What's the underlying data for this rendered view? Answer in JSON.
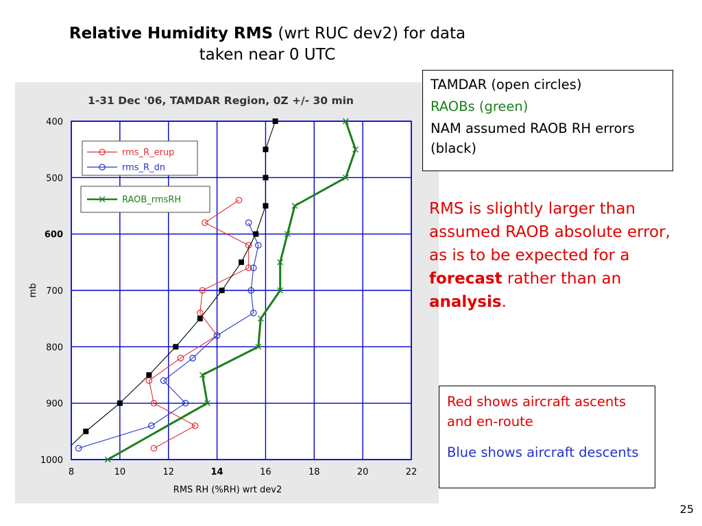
{
  "slide": {
    "title_bold": "Relative Humidity RMS",
    "title_rest": " (wrt RUC dev2) for data",
    "title_line2": "taken near 0 UTC",
    "legend_box": {
      "line1": "TAMDAR (open circles)",
      "line2": "RAOBs (green)",
      "line3": "NAM assumed RAOB RH errors (black)"
    },
    "note": {
      "part1": "RMS is slightly larger than assumed RAOB absolute error, as is to be expected for a ",
      "bold1": "forecast",
      "part2": " rather than an ",
      "bold2": "analysis",
      "part3": "."
    },
    "color_box": {
      "red_text": "Red shows aircraft ascents and en-route",
      "blue_text": "Blue shows aircraft descents"
    },
    "page_number": "25"
  },
  "chart_data": {
    "type": "line",
    "title": "1-31 Dec '06, TAMDAR Region, 0Z +/- 30 min",
    "xlabel": "RMS RH (%RH) wrt dev2",
    "ylabel": "mb",
    "xlim": [
      8,
      22
    ],
    "ylim": [
      1000,
      400
    ],
    "x_ticks": [
      8,
      10,
      12,
      14,
      16,
      18,
      20,
      22
    ],
    "x_ticks_bold": [
      14
    ],
    "y_ticks": [
      400,
      500,
      600,
      700,
      800,
      900,
      1000
    ],
    "y_ticks_bold": [
      600
    ],
    "grid": true,
    "grid_color": "#0000cc",
    "legend_placement": "top-left",
    "series": [
      {
        "name": "rms_R_erup",
        "color": "#e03030",
        "marker": "open-circle",
        "x": [
          14.9,
          13.5,
          15.3,
          15.3,
          13.4,
          13.3,
          14.0,
          12.5,
          11.2,
          11.4,
          13.1,
          11.4
        ],
        "y": [
          540,
          580,
          620,
          660,
          700,
          740,
          780,
          820,
          860,
          900,
          940,
          980
        ]
      },
      {
        "name": "rms_R_dn",
        "color": "#2233cc",
        "marker": "open-circle",
        "x": [
          15.3,
          15.7,
          15.5,
          15.4,
          15.5,
          14.0,
          13.0,
          11.8,
          12.7,
          11.3,
          8.3
        ],
        "y": [
          580,
          620,
          660,
          700,
          740,
          780,
          820,
          860,
          900,
          940,
          980
        ]
      },
      {
        "name": "RAOB_rmsRH",
        "color": "#1a7f1a",
        "marker": "x",
        "x": [
          19.3,
          19.7,
          19.3,
          17.2,
          16.9,
          16.6,
          16.6,
          15.8,
          15.7,
          13.4,
          13.6,
          9.5
        ],
        "y": [
          400,
          450,
          500,
          550,
          600,
          650,
          700,
          750,
          800,
          850,
          900,
          1000
        ]
      },
      {
        "name": "",
        "color": "#000000",
        "marker": "filled-square",
        "x": [
          16.4,
          16.0,
          16.0,
          16.0,
          15.6,
          15.0,
          14.2,
          13.3,
          12.3,
          11.2,
          10.0,
          8.6
        ],
        "y": [
          400,
          450,
          500,
          550,
          600,
          650,
          700,
          750,
          800,
          850,
          900,
          950
        ],
        "line_extends_to": {
          "x": 8.0,
          "y": 975
        }
      }
    ]
  }
}
